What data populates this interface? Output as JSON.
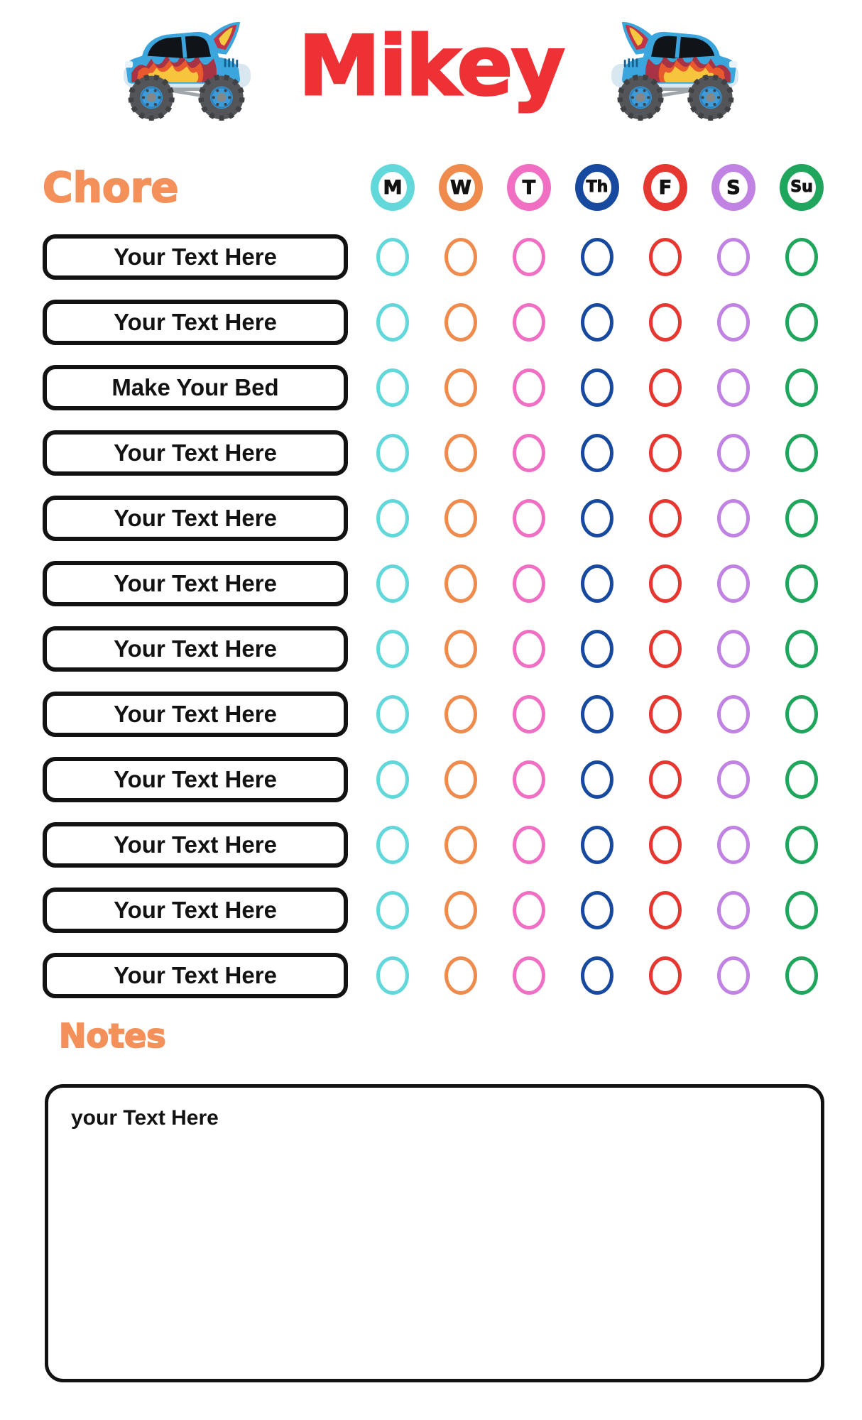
{
  "page": {
    "title": "Mikey"
  },
  "header": {
    "left_icon": "monster-truck",
    "right_icon": "monster-truck-mirrored"
  },
  "chore_chart": {
    "heading": "Chore",
    "days": [
      {
        "label": "M",
        "color": "#63D8DB"
      },
      {
        "label": "W",
        "color": "#EF8B4D"
      },
      {
        "label": "T",
        "color": "#F06FC2"
      },
      {
        "label": "Th",
        "color": "#17499E"
      },
      {
        "label": "F",
        "color": "#E63731"
      },
      {
        "label": "S",
        "color": "#C183E3"
      },
      {
        "label": "Su",
        "color": "#1FA55C"
      }
    ],
    "rows": [
      {
        "label": "Your Text Here"
      },
      {
        "label": "Your Text Here"
      },
      {
        "label": "Make Your Bed"
      },
      {
        "label": "Your Text Here"
      },
      {
        "label": "Your Text Here"
      },
      {
        "label": "Your Text Here"
      },
      {
        "label": "Your Text Here"
      },
      {
        "label": "Your Text Here"
      },
      {
        "label": "Your Text Here"
      },
      {
        "label": "Your Text Here"
      },
      {
        "label": "Your Text Here"
      },
      {
        "label": "Your Text Here"
      }
    ]
  },
  "notes": {
    "heading": "Notes",
    "content": "your Text Here"
  },
  "colors": {
    "title_red": "#EE3135",
    "accent_orange": "#F4915A",
    "box_border": "#121212"
  }
}
